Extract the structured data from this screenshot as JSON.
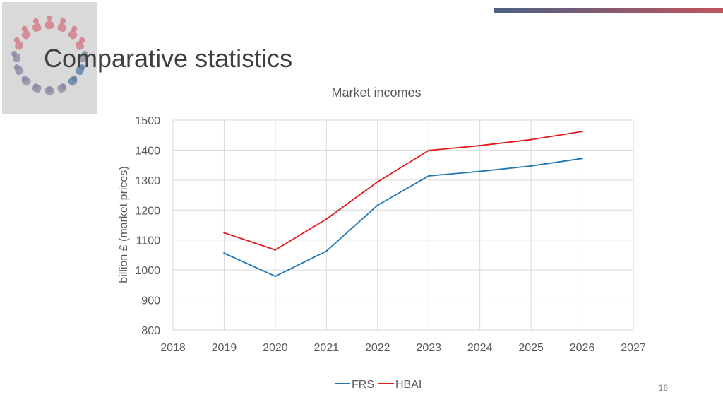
{
  "slide": {
    "title": "Comparative statistics",
    "page_number": "16"
  },
  "colors": {
    "accent_gradient": [
      "#4a6284",
      "#c0545c"
    ],
    "frs": "#1f77b4",
    "hbai": "#e31a1c"
  },
  "chart_data": {
    "type": "line",
    "title": "Market incomes",
    "xlabel": "",
    "ylabel": "billion £ (market prices)",
    "xlim": [
      2018,
      2027
    ],
    "ylim": [
      800,
      1500
    ],
    "xticks": [
      2018,
      2019,
      2020,
      2021,
      2022,
      2023,
      2024,
      2025,
      2026,
      2027
    ],
    "yticks": [
      800,
      900,
      1000,
      1100,
      1200,
      1300,
      1400,
      1500
    ],
    "grid": true,
    "legend": "bottom-center",
    "x": [
      2019,
      2020,
      2021,
      2022,
      2023,
      2024,
      2025,
      2026
    ],
    "series": [
      {
        "name": "FRS",
        "color": "#1f77b4",
        "values": [
          1056,
          979,
          1063,
          1216,
          1314,
          1329,
          1347,
          1372
        ]
      },
      {
        "name": "HBAI",
        "color": "#e31a1c",
        "values": [
          1124,
          1067,
          1170,
          1294,
          1399,
          1415,
          1435,
          1462
        ]
      }
    ]
  }
}
